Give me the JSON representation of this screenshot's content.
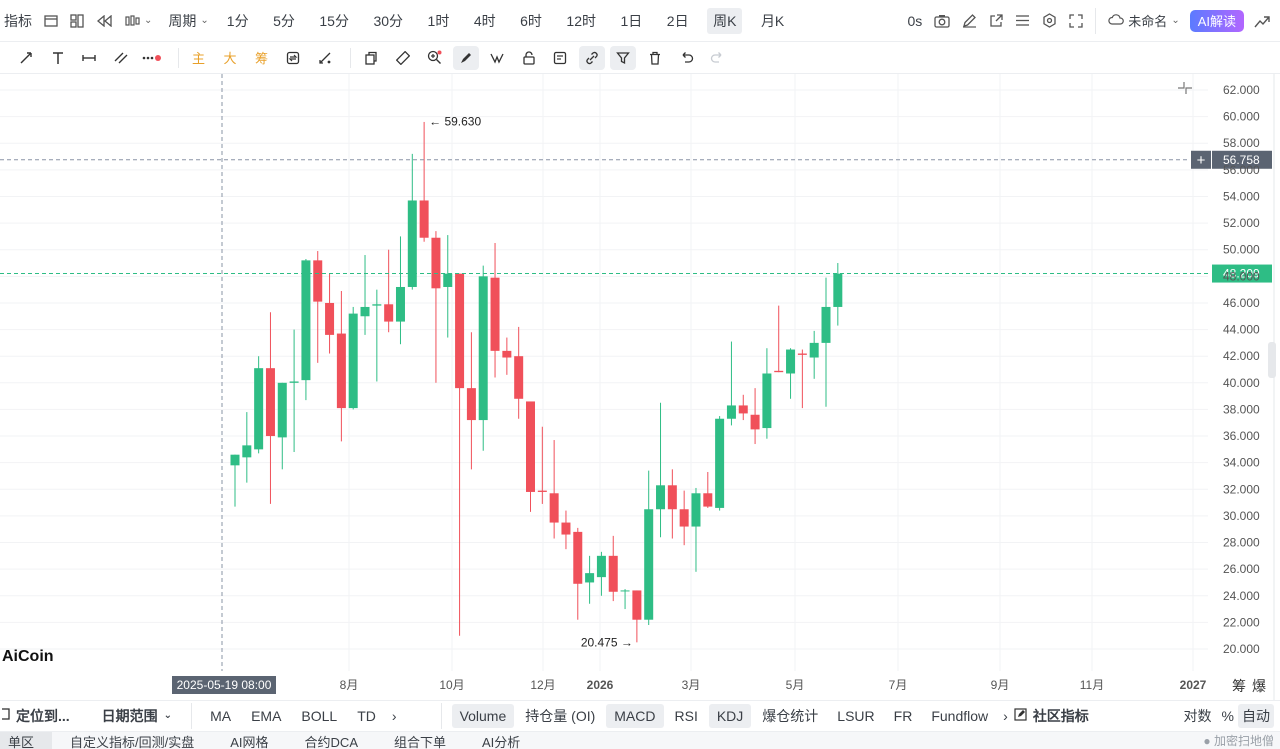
{
  "topbar": {
    "indicators_label": "指标",
    "period_label": "周期",
    "intervals": [
      "1分",
      "5分",
      "15分",
      "30分",
      "1时",
      "4时",
      "6时",
      "12时",
      "1日",
      "2日",
      "周K",
      "月K"
    ],
    "active_interval": "周K",
    "countdown": "0s",
    "layout_name": "未命名",
    "ai_button": "AI解读"
  },
  "toolbar2": {
    "main_label": "主",
    "big_label": "大",
    "chip_label": "筹"
  },
  "chart": {
    "y_ticks": [
      "62.000",
      "60.000",
      "58.000",
      "56.000",
      "54.000",
      "52.000",
      "50.000",
      "48.000",
      "46.000",
      "44.000",
      "42.000",
      "40.000",
      "38.000",
      "36.000",
      "34.000",
      "32.000",
      "30.000",
      "28.000",
      "26.000",
      "24.000",
      "22.000",
      "20.000"
    ],
    "x_ticks": [
      "8月",
      "10月",
      "12月",
      "2026",
      "3月",
      "5月",
      "7月",
      "9月",
      "11月",
      "2027"
    ],
    "crosshair_price": "56.758",
    "last_price": "48.209",
    "crosshair_date": "2025-05-19 08:00",
    "high_label": "59.630",
    "low_label": "20.475",
    "brand": "AiCoin",
    "right_labels": [
      "筹",
      "爆"
    ],
    "colors": {
      "up": "#2ebd85",
      "down": "#f0505a",
      "last_line": "#2ebd85",
      "crosshair": "#8a94a6"
    }
  },
  "chart_data": {
    "type": "candlestick",
    "interval": "1W",
    "ylim": [
      19,
      62.6
    ],
    "candles": [
      {
        "o": 33.8,
        "h": 34.6,
        "l": 30.7,
        "c": 34.6
      },
      {
        "o": 34.4,
        "h": 37.8,
        "l": 32.5,
        "c": 35.3
      },
      {
        "o": 35.0,
        "h": 42.0,
        "l": 34.7,
        "c": 41.1
      },
      {
        "o": 41.1,
        "h": 45.3,
        "l": 30.9,
        "c": 36.0
      },
      {
        "o": 35.9,
        "h": 40.0,
        "l": 33.5,
        "c": 40.0
      },
      {
        "o": 40.0,
        "h": 44.0,
        "l": 34.8,
        "c": 40.1
      },
      {
        "o": 40.2,
        "h": 49.3,
        "l": 38.7,
        "c": 49.2
      },
      {
        "o": 49.2,
        "h": 49.9,
        "l": 41.5,
        "c": 46.1
      },
      {
        "o": 46.0,
        "h": 48.2,
        "l": 42.2,
        "c": 43.6
      },
      {
        "o": 43.7,
        "h": 46.9,
        "l": 35.6,
        "c": 38.1
      },
      {
        "o": 38.1,
        "h": 45.7,
        "l": 38.0,
        "c": 45.2
      },
      {
        "o": 45.0,
        "h": 49.6,
        "l": 43.6,
        "c": 45.7
      },
      {
        "o": 45.8,
        "h": 47.0,
        "l": 40.1,
        "c": 45.9
      },
      {
        "o": 45.9,
        "h": 50.0,
        "l": 43.8,
        "c": 44.6
      },
      {
        "o": 44.6,
        "h": 51.0,
        "l": 42.9,
        "c": 47.2
      },
      {
        "o": 47.2,
        "h": 57.2,
        "l": 47.0,
        "c": 53.7
      },
      {
        "o": 53.7,
        "h": 59.6,
        "l": 50.6,
        "c": 50.9
      },
      {
        "o": 50.9,
        "h": 51.4,
        "l": 40.0,
        "c": 47.1
      },
      {
        "o": 47.2,
        "h": 51.1,
        "l": 43.4,
        "c": 48.2
      },
      {
        "o": 48.2,
        "h": 48.2,
        "l": 21.0,
        "c": 39.6
      },
      {
        "o": 39.6,
        "h": 43.8,
        "l": 33.5,
        "c": 37.2
      },
      {
        "o": 37.2,
        "h": 48.8,
        "l": 34.9,
        "c": 48.0
      },
      {
        "o": 47.9,
        "h": 50.5,
        "l": 40.4,
        "c": 42.4
      },
      {
        "o": 42.4,
        "h": 43.4,
        "l": 40.6,
        "c": 41.9
      },
      {
        "o": 42.0,
        "h": 44.2,
        "l": 37.3,
        "c": 38.8
      },
      {
        "o": 38.6,
        "h": 38.6,
        "l": 30.3,
        "c": 31.8
      },
      {
        "o": 31.9,
        "h": 36.7,
        "l": 30.9,
        "c": 31.8
      },
      {
        "o": 31.7,
        "h": 35.7,
        "l": 28.3,
        "c": 29.5
      },
      {
        "o": 29.5,
        "h": 30.4,
        "l": 27.5,
        "c": 28.6
      },
      {
        "o": 28.8,
        "h": 29.1,
        "l": 22.2,
        "c": 24.9
      },
      {
        "o": 25.0,
        "h": 27.0,
        "l": 23.4,
        "c": 25.7
      },
      {
        "o": 25.4,
        "h": 27.3,
        "l": 24.0,
        "c": 27.0
      },
      {
        "o": 27.0,
        "h": 28.5,
        "l": 23.6,
        "c": 24.3
      },
      {
        "o": 24.4,
        "h": 24.5,
        "l": 23.0,
        "c": 24.4
      },
      {
        "o": 24.4,
        "h": 24.4,
        "l": 20.5,
        "c": 22.2
      },
      {
        "o": 22.2,
        "h": 33.4,
        "l": 21.8,
        "c": 30.5
      },
      {
        "o": 30.5,
        "h": 38.5,
        "l": 28.4,
        "c": 32.3
      },
      {
        "o": 32.3,
        "h": 33.5,
        "l": 28.3,
        "c": 30.5
      },
      {
        "o": 30.5,
        "h": 31.9,
        "l": 27.8,
        "c": 29.2
      },
      {
        "o": 29.2,
        "h": 32.1,
        "l": 25.8,
        "c": 31.7
      },
      {
        "o": 31.7,
        "h": 33.3,
        "l": 30.6,
        "c": 30.7
      },
      {
        "o": 30.6,
        "h": 37.5,
        "l": 30.4,
        "c": 37.3
      },
      {
        "o": 37.3,
        "h": 43.1,
        "l": 36.8,
        "c": 38.3
      },
      {
        "o": 38.3,
        "h": 39.1,
        "l": 37.2,
        "c": 37.7
      },
      {
        "o": 37.6,
        "h": 39.6,
        "l": 35.4,
        "c": 36.5
      },
      {
        "o": 36.6,
        "h": 42.6,
        "l": 35.8,
        "c": 40.7
      },
      {
        "o": 40.9,
        "h": 45.8,
        "l": 40.8,
        "c": 40.8
      },
      {
        "o": 40.7,
        "h": 42.6,
        "l": 38.8,
        "c": 42.5
      },
      {
        "o": 42.2,
        "h": 42.5,
        "l": 38.1,
        "c": 42.1
      },
      {
        "o": 41.9,
        "h": 43.9,
        "l": 40.3,
        "c": 43.0
      },
      {
        "o": 43.0,
        "h": 47.9,
        "l": 38.2,
        "c": 45.7
      },
      {
        "o": 45.7,
        "h": 49.0,
        "l": 44.3,
        "c": 48.2
      }
    ]
  },
  "bottom": {
    "locate_label": "定位到...",
    "date_range_label": "日期范围",
    "overlays": [
      "MA",
      "EMA",
      "BOLL",
      "TD"
    ],
    "panes": [
      "Volume",
      "持仓量 (OI)",
      "MACD",
      "RSI",
      "KDJ",
      "爆仓统计",
      "LSUR",
      "FR",
      "Fundflow"
    ],
    "active_panes": [
      "Volume",
      "MACD",
      "KDJ"
    ],
    "community_label": "社区指标",
    "log_label": "对数",
    "percent_label": "%",
    "auto_label": "自动",
    "tabs": [
      "单区",
      "自定义指标/回测/实盘",
      "AI网格",
      "合约DCA",
      "组合下单",
      "AI分析"
    ],
    "watermark": "加密扫地僧"
  }
}
